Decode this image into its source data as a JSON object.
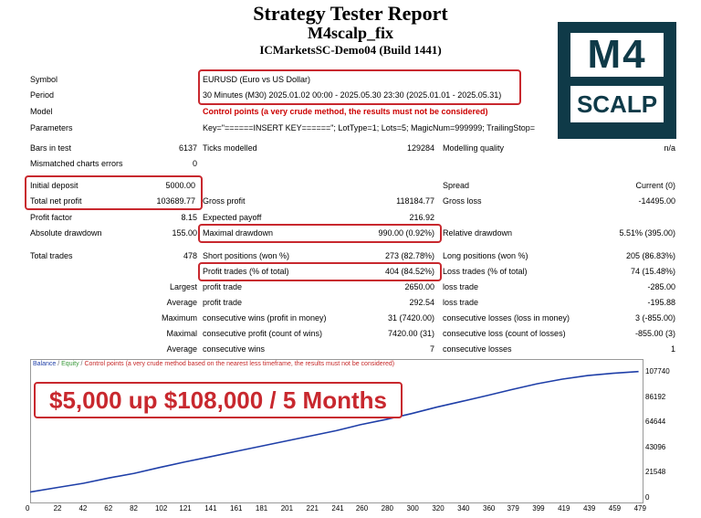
{
  "report": {
    "title": "Strategy Tester Report",
    "expert": "M4scalp_fix",
    "server": "ICMarketsSC-Demo04 (Build 1441)"
  },
  "logo": {
    "line1": "M4",
    "line2": "SCALP"
  },
  "settings": {
    "symbol_label": "Symbol",
    "symbol": "EURUSD (Euro vs US Dollar)",
    "period_label": "Period",
    "period": "30 Minutes (M30) 2025.01.02 00:00 - 2025.05.30 23:30 (2025.01.01 - 2025.05.31)",
    "model_label": "Model",
    "model": "Control points (a very crude method, the results must not be considered)",
    "parameters_label": "Parameters",
    "parameters": "Key=\"======INSERT KEY======\"; LotType=1; Lots=5; MagicNum=999999; TrailingStop="
  },
  "stats": {
    "bars_label": "Bars in test",
    "bars": "6137",
    "ticks_label": "Ticks modelled",
    "ticks": "129284",
    "quality_label": "Modelling quality",
    "quality": "n/a",
    "mismatch_label": "Mismatched charts errors",
    "mismatch": "0",
    "initial_deposit_label": "Initial deposit",
    "initial_deposit": "5000.00",
    "spread_label": "Spread",
    "spread": "Current (0)",
    "net_profit_label": "Total net profit",
    "net_profit": "103689.77",
    "gross_profit_label": "Gross profit",
    "gross_profit": "118184.77",
    "gross_loss_label": "Gross loss",
    "gross_loss": "-14495.00",
    "profit_factor_label": "Profit factor",
    "profit_factor": "8.15",
    "expected_payoff_label": "Expected payoff",
    "expected_payoff": "216.92",
    "abs_dd_label": "Absolute drawdown",
    "abs_dd": "155.00",
    "max_dd_label": "Maximal drawdown",
    "max_dd": "990.00 (0.92%)",
    "rel_dd_label": "Relative drawdown",
    "rel_dd": "5.51% (395.00)",
    "total_trades_label": "Total trades",
    "total_trades": "478",
    "short_label": "Short positions (won %)",
    "short": "273 (82.78%)",
    "long_label": "Long positions (won %)",
    "long": "205 (86.83%)",
    "profit_trades_label": "Profit trades (% of total)",
    "profit_trades": "404 (84.52%)",
    "loss_trades_label": "Loss trades (% of total)",
    "loss_trades": "74 (15.48%)",
    "largest_label": "Largest",
    "largest_profit_label": "profit trade",
    "largest_profit": "2650.00",
    "largest_loss_label": "loss trade",
    "largest_loss": "-285.00",
    "average_label": "Average",
    "average_profit_label": "profit trade",
    "average_profit": "292.54",
    "average_loss_label": "loss trade",
    "average_loss": "-195.88",
    "maximum_label": "Maximum",
    "max_cons_wins_label": "consecutive wins (profit in money)",
    "max_cons_wins": "31 (7420.00)",
    "max_cons_losses_label": "consecutive losses (loss in money)",
    "max_cons_losses": "3 (-855.00)",
    "maximal_label": "Maximal",
    "maximal_cons_profit_label": "consecutive profit (count of wins)",
    "maximal_cons_profit": "7420.00 (31)",
    "maximal_cons_loss_label": "consecutive loss (count of losses)",
    "maximal_cons_loss": "-855.00 (3)",
    "avg2_label": "Average",
    "avg_cons_wins_label": "consecutive wins",
    "avg_cons_wins": "7",
    "avg_cons_losses_label": "consecutive losses",
    "avg_cons_losses": "1"
  },
  "chart_legend": {
    "balance": "Balance",
    "sep1": " / ",
    "equity": "Equity",
    "sep2": " / ",
    "control": "Control points (a very crude method based on the nearest less timeframe, the results must not be considered)"
  },
  "banner": "$5,000 up $108,000 / 5 Months",
  "colors": {
    "balance": "#1f3fa8",
    "equity": "#3a9a3a",
    "highlight": "#c8282e"
  },
  "chart_data": {
    "type": "line",
    "y_ticks": [
      "107740",
      "86192",
      "64644",
      "43096",
      "21548",
      "0"
    ],
    "x_ticks": [
      "0",
      "22",
      "42",
      "62",
      "82",
      "102",
      "121",
      "141",
      "161",
      "181",
      "201",
      "221",
      "241",
      "260",
      "280",
      "300",
      "320",
      "340",
      "360",
      "379",
      "399",
      "419",
      "439",
      "459",
      "479"
    ],
    "ylim": [
      0,
      107740
    ],
    "xlim": [
      0,
      480
    ],
    "series": [
      {
        "name": "Balance",
        "x": [
          0,
          22,
          42,
          62,
          82,
          102,
          121,
          141,
          161,
          181,
          201,
          221,
          241,
          260,
          280,
          300,
          320,
          340,
          360,
          379,
          399,
          419,
          439,
          459,
          479
        ],
        "y": [
          5000,
          9000,
          12500,
          17000,
          21000,
          26000,
          30500,
          35000,
          39500,
          44000,
          48500,
          53000,
          57500,
          62500,
          67000,
          72000,
          77500,
          82500,
          87500,
          92500,
          97500,
          101500,
          104500,
          106500,
          108000
        ]
      }
    ]
  }
}
